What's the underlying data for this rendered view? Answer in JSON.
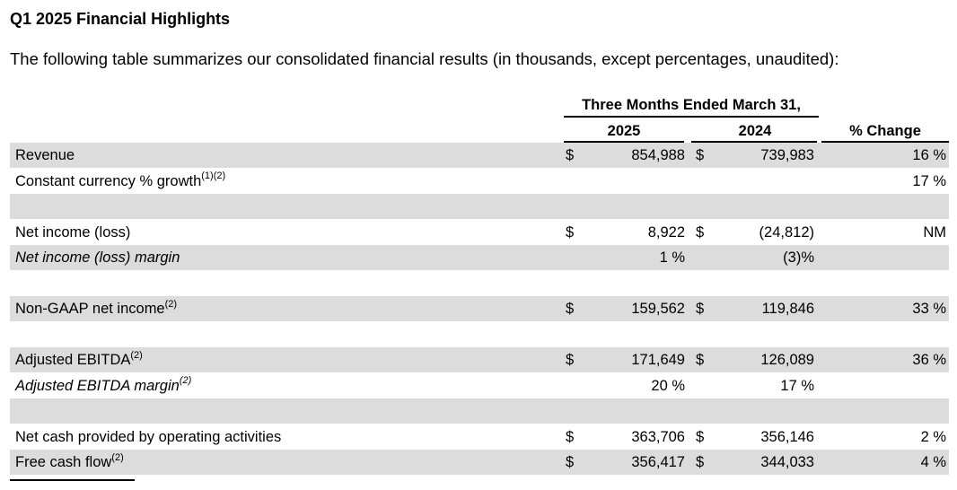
{
  "title": "Q1 2025 Financial Highlights",
  "intro": "The following table summarizes our consolidated financial results (in thousands, except percentages, unaudited):",
  "header": {
    "period": "Three Months Ended March 31,",
    "col_2025": "2025",
    "col_2024": "2024",
    "col_change": "% Change"
  },
  "rows": [
    {
      "label": "Revenue",
      "sup": "",
      "cur1": "$",
      "v2025": "854,988",
      "cur2": "$",
      "v2024": "739,983",
      "change": "16 %"
    },
    {
      "label": "Constant currency % growth",
      "sup": "(1)(2)",
      "cur1": "",
      "v2025": "",
      "cur2": "",
      "v2024": "",
      "change": "17 %"
    },
    {
      "label": "",
      "sup": "",
      "cur1": "",
      "v2025": "",
      "cur2": "",
      "v2024": "",
      "change": ""
    },
    {
      "label": "Net income (loss)",
      "sup": "",
      "cur1": "$",
      "v2025": "8,922",
      "cur2": "$",
      "v2024": "(24,812)",
      "change": "NM"
    },
    {
      "label": "Net income (loss) margin",
      "sup": "",
      "cur1": "",
      "v2025": "1 %",
      "cur2": "",
      "v2024": "(3)%",
      "change": ""
    },
    {
      "label": "",
      "sup": "",
      "cur1": "",
      "v2025": "",
      "cur2": "",
      "v2024": "",
      "change": ""
    },
    {
      "label": "Non-GAAP net income",
      "sup": "(2)",
      "cur1": "$",
      "v2025": "159,562",
      "cur2": "$",
      "v2024": "119,846",
      "change": "33 %"
    },
    {
      "label": "",
      "sup": "",
      "cur1": "",
      "v2025": "",
      "cur2": "",
      "v2024": "",
      "change": ""
    },
    {
      "label": "Adjusted EBITDA",
      "sup": "(2)",
      "cur1": "$",
      "v2025": "171,649",
      "cur2": "$",
      "v2024": "126,089",
      "change": "36 %"
    },
    {
      "label": "Adjusted EBITDA margin",
      "sup": "(2)",
      "cur1": "",
      "v2025": "20 %",
      "cur2": "",
      "v2024": "17 %",
      "change": ""
    },
    {
      "label": "",
      "sup": "",
      "cur1": "",
      "v2025": "",
      "cur2": "",
      "v2024": "",
      "change": ""
    },
    {
      "label": "Net cash provided by operating activities",
      "sup": "",
      "cur1": "$",
      "v2025": "363,706",
      "cur2": "$",
      "v2024": "356,146",
      "change": "2 %"
    },
    {
      "label": "Free cash flow",
      "sup": "(2)",
      "cur1": "$",
      "v2025": "356,417",
      "cur2": "$",
      "v2024": "344,033",
      "change": "4 %"
    }
  ]
}
